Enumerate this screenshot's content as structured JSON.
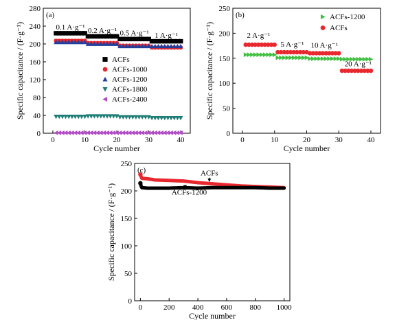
{
  "chart_data": [
    {
      "id": "a",
      "type": "scatter",
      "panel_label": "(a)",
      "xlabel": "Cycle number",
      "ylabel": "Specific capacitance / (F·g⁻¹)",
      "xlim": [
        -3,
        43
      ],
      "ylim": [
        0,
        280
      ],
      "xticks": [
        0,
        10,
        20,
        30,
        40
      ],
      "yticks": [
        0,
        40,
        80,
        120,
        160,
        200,
        240,
        280
      ],
      "legend_position": "center-right",
      "annotations": [
        {
          "text": "0.1 A·g⁻¹",
          "x": 5.5,
          "y": 232
        },
        {
          "text": "0.2 A·g⁻¹",
          "x": 15.5,
          "y": 225
        },
        {
          "text": "0.5 A·g⁻¹",
          "x": 25.5,
          "y": 219
        },
        {
          "text": "1 A·g⁻¹",
          "x": 35.5,
          "y": 214
        }
      ],
      "series": [
        {
          "name": "ACFs",
          "marker": "square",
          "color": "#000000",
          "x_start": 1,
          "x_end": 40,
          "segments": [
            {
              "from": 1,
              "to": 10,
              "y": 224
            },
            {
              "from": 11,
              "to": 20,
              "y": 217
            },
            {
              "from": 21,
              "to": 30,
              "y": 211
            },
            {
              "from": 31,
              "to": 40,
              "y": 206
            }
          ]
        },
        {
          "name": "ACFs-1000",
          "marker": "circle",
          "color": "#e8282e",
          "x_start": 1,
          "x_end": 40,
          "segments": [
            {
              "from": 1,
              "to": 10,
              "y": 207
            },
            {
              "from": 11,
              "to": 20,
              "y": 202
            },
            {
              "from": 21,
              "to": 30,
              "y": 196
            },
            {
              "from": 31,
              "to": 40,
              "y": 192
            }
          ]
        },
        {
          "name": "ACFs-1200",
          "marker": "triangle-up",
          "color": "#1f3f9e",
          "x_start": 1,
          "x_end": 40,
          "segments": [
            {
              "from": 1,
              "to": 10,
              "y": 204
            },
            {
              "from": 11,
              "to": 20,
              "y": 200
            },
            {
              "from": 21,
              "to": 30,
              "y": 195
            },
            {
              "from": 31,
              "to": 40,
              "y": 195
            }
          ]
        },
        {
          "name": "ACFs-1800",
          "marker": "triangle-down",
          "color": "#1e7d74",
          "x_start": 1,
          "x_end": 40,
          "segments": [
            {
              "from": 1,
              "to": 10,
              "y": 37
            },
            {
              "from": 11,
              "to": 20,
              "y": 38
            },
            {
              "from": 21,
              "to": 30,
              "y": 36
            },
            {
              "from": 31,
              "to": 40,
              "y": 34
            }
          ]
        },
        {
          "name": "ACFs-2400",
          "marker": "triangle-left",
          "color": "#b24bc6",
          "x_start": 1,
          "x_end": 40,
          "segments": [
            {
              "from": 1,
              "to": 40,
              "y": 1
            }
          ]
        }
      ]
    },
    {
      "id": "b",
      "type": "scatter",
      "panel_label": "(b)",
      "xlabel": "Cycle number",
      "ylabel": "Specific capacitance / (F·g⁻¹)",
      "xlim": [
        -3,
        43
      ],
      "ylim": [
        0,
        250
      ],
      "xticks": [
        0,
        10,
        20,
        30,
        40
      ],
      "yticks": [
        0,
        50,
        100,
        150,
        200,
        250
      ],
      "legend_position": "top-right",
      "annotations": [
        {
          "text": "2 A·g⁻¹",
          "x": 5,
          "y": 191
        },
        {
          "text": "5 A·g⁻¹",
          "x": 15.5,
          "y": 173
        },
        {
          "text": "10 A·g⁻¹",
          "x": 25.5,
          "y": 171
        },
        {
          "text": "20 A·g⁻¹",
          "x": 36,
          "y": 134
        }
      ],
      "series": [
        {
          "name": "ACFs-1200",
          "marker": "triangle-right",
          "color": "#3fbf3f",
          "x_start": 1,
          "x_end": 40,
          "segments": [
            {
              "from": 1,
              "to": 10,
              "y": 157
            },
            {
              "from": 11,
              "to": 20,
              "y": 151
            },
            {
              "from": 21,
              "to": 30,
              "y": 149
            },
            {
              "from": 31,
              "to": 40,
              "y": 148
            }
          ]
        },
        {
          "name": "ACFs",
          "marker": "circle",
          "color": "#e8282e",
          "x_start": 1,
          "x_end": 40,
          "segments": [
            {
              "from": 1,
              "to": 10,
              "y": 177
            },
            {
              "from": 11,
              "to": 20,
              "y": 162
            },
            {
              "from": 21,
              "to": 30,
              "y": 160
            },
            {
              "from": 31,
              "to": 40,
              "y": 125
            }
          ]
        }
      ]
    },
    {
      "id": "c",
      "type": "line",
      "panel_label": "(c)",
      "xlabel": "Cycle number",
      "ylabel": "Specific capacitance / (F·g⁻¹)",
      "xlim": [
        -40,
        1040
      ],
      "ylim": [
        0,
        250
      ],
      "xticks": [
        0,
        200,
        400,
        600,
        800,
        1000
      ],
      "yticks": [
        0,
        50,
        100,
        150,
        200,
        250
      ],
      "annotations": [
        {
          "text": "ACFs",
          "x": 480,
          "y": 228
        },
        {
          "text": "ACFs-1200",
          "x": 340,
          "y": 193
        }
      ],
      "series": [
        {
          "name": "ACFs",
          "color": "#e8282e",
          "x": [
            0,
            5,
            10,
            50,
            100,
            200,
            300,
            400,
            500,
            600,
            700,
            800,
            900,
            1000
          ],
          "y": [
            230,
            226,
            223,
            222,
            220,
            219,
            218,
            215,
            213,
            211,
            209,
            208,
            207,
            206
          ]
        },
        {
          "name": "ACFs-1200",
          "color": "#000000",
          "x": [
            0,
            5,
            10,
            50,
            100,
            200,
            300,
            400,
            500,
            600,
            700,
            800,
            900,
            1000
          ],
          "y": [
            214,
            209,
            206,
            205,
            205,
            205,
            206,
            205,
            206,
            206,
            206,
            206,
            205,
            205
          ]
        }
      ]
    }
  ]
}
